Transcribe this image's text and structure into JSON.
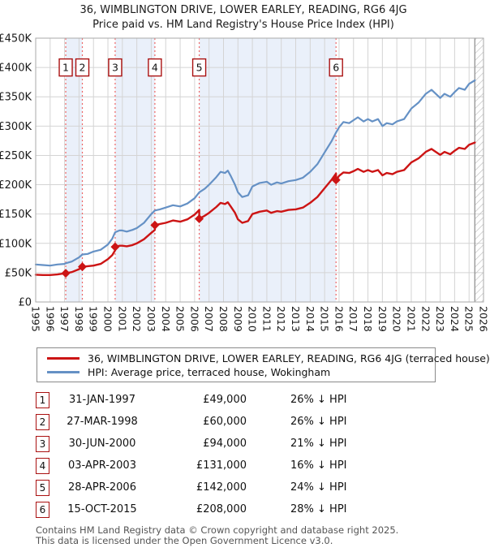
{
  "title": {
    "line1": "36, WIMBLINGTON DRIVE, LOWER EARLEY, READING, RG6 4JG",
    "line2": "Price paid vs. HM Land Registry's House Price Index (HPI)"
  },
  "chart_data": {
    "type": "line",
    "x_range": [
      1995,
      2026
    ],
    "y_range": [
      0,
      450000
    ],
    "y_tick_step": 50000,
    "y_tick_labels": [
      "£0",
      "£50K",
      "£100K",
      "£150K",
      "£200K",
      "£250K",
      "£300K",
      "£350K",
      "£400K",
      "£450K"
    ],
    "x_tick_labels": [
      "1995",
      "1996",
      "1997",
      "1998",
      "1999",
      "2000",
      "2001",
      "2002",
      "2003",
      "2004",
      "2005",
      "2006",
      "2007",
      "2008",
      "2009",
      "2010",
      "2011",
      "2012",
      "2013",
      "2014",
      "2015",
      "2016",
      "2017",
      "2018",
      "2019",
      "2020",
      "2021",
      "2022",
      "2023",
      "2024",
      "2025",
      "2026"
    ],
    "grid": true,
    "legend_position": "below",
    "colors": {
      "grid": "#d4d4d4",
      "border": "#aaaaaa",
      "band": "#eaf0fa",
      "sale_dash": "#ee6666",
      "badge_border": "#aa1111",
      "hatch_line": "#bbbbbb",
      "hatch_edge": "#999999",
      "axis_text": "#1a1a1a"
    },
    "ownership_bands": [
      [
        1997.08,
        1998.23
      ],
      [
        2000.5,
        2003.25
      ],
      [
        2006.32,
        2015.79
      ]
    ],
    "future_hatch_from": 2025.4,
    "series": [
      {
        "name": "price-paid",
        "label": "36, WIMBLINGTON DRIVE, LOWER EARLEY, READING, RG6 4JG (terraced house)",
        "color": "#cc1414",
        "width": 2.4,
        "points": [
          [
            1995,
            46500
          ],
          [
            1995.5,
            46000
          ],
          [
            1996,
            46000
          ],
          [
            1996.5,
            47000
          ],
          [
            1997.08,
            49000
          ],
          [
            1997.5,
            51000
          ],
          [
            1998,
            56000
          ],
          [
            1998.23,
            60000
          ],
          [
            1998.6,
            61000
          ],
          [
            1999,
            62000
          ],
          [
            1999.5,
            65000
          ],
          [
            2000,
            73000
          ],
          [
            2000.3,
            80000
          ],
          [
            2000.499,
            88000
          ],
          [
            2000.5,
            94000
          ],
          [
            2000.8,
            96000
          ],
          [
            2001,
            96000
          ],
          [
            2001.3,
            95000
          ],
          [
            2001.7,
            97000
          ],
          [
            2002,
            100000
          ],
          [
            2002.5,
            107000
          ],
          [
            2003,
            118000
          ],
          [
            2003.249,
            123000
          ],
          [
            2003.25,
            131000
          ],
          [
            2003.6,
            133000
          ],
          [
            2004,
            135000
          ],
          [
            2004.5,
            139000
          ],
          [
            2005,
            137000
          ],
          [
            2005.5,
            141000
          ],
          [
            2006,
            149000
          ],
          [
            2006.319,
            157000
          ],
          [
            2006.32,
            142000
          ],
          [
            2006.7,
            147000
          ],
          [
            2007,
            152000
          ],
          [
            2007.5,
            162000
          ],
          [
            2007.8,
            169000
          ],
          [
            2008.1,
            167000
          ],
          [
            2008.3,
            170000
          ],
          [
            2008.5,
            163000
          ],
          [
            2008.8,
            152000
          ],
          [
            2009,
            141000
          ],
          [
            2009.3,
            135000
          ],
          [
            2009.7,
            138000
          ],
          [
            2010,
            150000
          ],
          [
            2010.5,
            154000
          ],
          [
            2011,
            156000
          ],
          [
            2011.3,
            152000
          ],
          [
            2011.7,
            155000
          ],
          [
            2012,
            154000
          ],
          [
            2012.5,
            157000
          ],
          [
            2013,
            158000
          ],
          [
            2013.5,
            161000
          ],
          [
            2014,
            169000
          ],
          [
            2014.5,
            179000
          ],
          [
            2015,
            194000
          ],
          [
            2015.5,
            209000
          ],
          [
            2015.789,
            219000
          ],
          [
            2015.79,
            208000
          ],
          [
            2016,
            215000
          ],
          [
            2016.3,
            221000
          ],
          [
            2016.7,
            220000
          ],
          [
            2017,
            223000
          ],
          [
            2017.3,
            227000
          ],
          [
            2017.7,
            222000
          ],
          [
            2018,
            225000
          ],
          [
            2018.3,
            222000
          ],
          [
            2018.7,
            225000
          ],
          [
            2019,
            216000
          ],
          [
            2019.3,
            220000
          ],
          [
            2019.7,
            218000
          ],
          [
            2020,
            222000
          ],
          [
            2020.5,
            225000
          ],
          [
            2021,
            238000
          ],
          [
            2021.5,
            245000
          ],
          [
            2022,
            256000
          ],
          [
            2022.4,
            261000
          ],
          [
            2022.7,
            256000
          ],
          [
            2023,
            251000
          ],
          [
            2023.3,
            256000
          ],
          [
            2023.7,
            252000
          ],
          [
            2024,
            258000
          ],
          [
            2024.3,
            263000
          ],
          [
            2024.7,
            261000
          ],
          [
            2025,
            268000
          ],
          [
            2025.4,
            272000
          ]
        ]
      },
      {
        "name": "hpi",
        "label": "HPI: Average price, terraced house, Wokingham",
        "color": "#6591c5",
        "width": 2.2,
        "points": [
          [
            1995,
            64000
          ],
          [
            1995.5,
            63000
          ],
          [
            1996,
            62000
          ],
          [
            1996.5,
            64000
          ],
          [
            1997,
            65000
          ],
          [
            1997.08,
            66000
          ],
          [
            1997.5,
            69000
          ],
          [
            1998,
            76000
          ],
          [
            1998.23,
            81000
          ],
          [
            1998.6,
            82000
          ],
          [
            1999,
            86000
          ],
          [
            1999.5,
            89000
          ],
          [
            2000,
            98000
          ],
          [
            2000.3,
            108000
          ],
          [
            2000.5,
            119000
          ],
          [
            2000.8,
            122000
          ],
          [
            2001,
            122000
          ],
          [
            2001.3,
            120000
          ],
          [
            2001.7,
            123000
          ],
          [
            2002,
            126000
          ],
          [
            2002.5,
            135000
          ],
          [
            2003,
            150000
          ],
          [
            2003.25,
            156000
          ],
          [
            2003.6,
            158000
          ],
          [
            2004,
            161000
          ],
          [
            2004.5,
            165000
          ],
          [
            2005,
            163000
          ],
          [
            2005.5,
            168000
          ],
          [
            2006,
            177000
          ],
          [
            2006.32,
            187000
          ],
          [
            2006.7,
            193000
          ],
          [
            2007,
            200000
          ],
          [
            2007.5,
            213000
          ],
          [
            2007.8,
            222000
          ],
          [
            2008.1,
            220000
          ],
          [
            2008.3,
            224000
          ],
          [
            2008.5,
            215000
          ],
          [
            2008.8,
            200000
          ],
          [
            2009,
            187000
          ],
          [
            2009.3,
            179000
          ],
          [
            2009.7,
            182000
          ],
          [
            2010,
            197000
          ],
          [
            2010.5,
            203000
          ],
          [
            2011,
            205000
          ],
          [
            2011.3,
            200000
          ],
          [
            2011.7,
            204000
          ],
          [
            2012,
            202000
          ],
          [
            2012.5,
            206000
          ],
          [
            2013,
            208000
          ],
          [
            2013.5,
            212000
          ],
          [
            2014,
            222000
          ],
          [
            2014.5,
            235000
          ],
          [
            2015,
            255000
          ],
          [
            2015.5,
            275000
          ],
          [
            2015.79,
            289000
          ],
          [
            2016,
            298000
          ],
          [
            2016.3,
            307000
          ],
          [
            2016.7,
            305000
          ],
          [
            2017,
            310000
          ],
          [
            2017.3,
            315000
          ],
          [
            2017.7,
            308000
          ],
          [
            2018,
            312000
          ],
          [
            2018.3,
            308000
          ],
          [
            2018.7,
            312000
          ],
          [
            2019,
            300000
          ],
          [
            2019.3,
            305000
          ],
          [
            2019.7,
            303000
          ],
          [
            2020,
            308000
          ],
          [
            2020.5,
            312000
          ],
          [
            2021,
            330000
          ],
          [
            2021.5,
            340000
          ],
          [
            2022,
            355000
          ],
          [
            2022.4,
            362000
          ],
          [
            2022.7,
            355000
          ],
          [
            2023,
            348000
          ],
          [
            2023.3,
            355000
          ],
          [
            2023.7,
            350000
          ],
          [
            2024,
            358000
          ],
          [
            2024.3,
            365000
          ],
          [
            2024.7,
            362000
          ],
          [
            2025,
            372000
          ],
          [
            2025.4,
            378000
          ]
        ]
      }
    ],
    "sales": [
      {
        "num": "1",
        "date": "31-JAN-1997",
        "year": 1997.08,
        "price": 49000,
        "price_label": "£49,000",
        "vs_hpi": "26% ↓ HPI"
      },
      {
        "num": "2",
        "date": "27-MAR-1998",
        "year": 1998.23,
        "price": 60000,
        "price_label": "£60,000",
        "vs_hpi": "26% ↓ HPI"
      },
      {
        "num": "3",
        "date": "30-JUN-2000",
        "year": 2000.5,
        "price": 94000,
        "price_label": "£94,000",
        "vs_hpi": "21% ↓ HPI"
      },
      {
        "num": "4",
        "date": "03-APR-2003",
        "year": 2003.25,
        "price": 131000,
        "price_label": "£131,000",
        "vs_hpi": "16% ↓ HPI"
      },
      {
        "num": "5",
        "date": "28-APR-2006",
        "year": 2006.32,
        "price": 142000,
        "price_label": "£142,000",
        "vs_hpi": "24% ↓ HPI"
      },
      {
        "num": "6",
        "date": "15-OCT-2015",
        "year": 2015.79,
        "price": 208000,
        "price_label": "£208,000",
        "vs_hpi": "28% ↓ HPI"
      }
    ],
    "badge_row_value": 400000
  },
  "footer": {
    "line1": "Contains HM Land Registry data © Crown copyright and database right 2025.",
    "line2": "This data is licensed under the Open Government Licence v3.0."
  }
}
